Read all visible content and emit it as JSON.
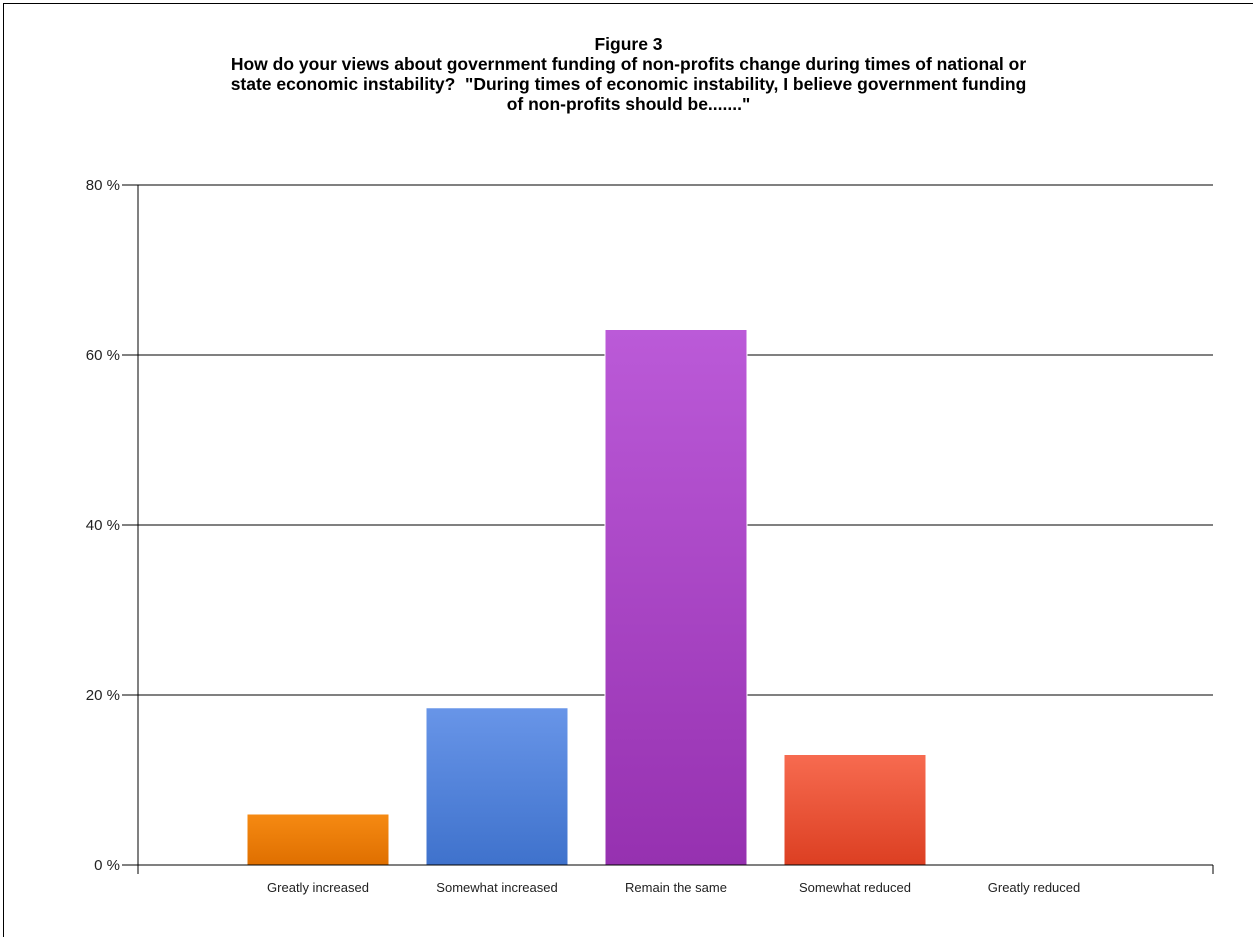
{
  "chart_data": {
    "type": "bar",
    "title": "Figure 3",
    "subtitle_lines": [
      "How do your views about government funding of non-profits change during times of national or",
      "state economic instability?  \"During times of economic instability, I believe government funding",
      "of non-profits should be.......\""
    ],
    "categories": [
      "Greatly increased",
      "Somewhat increased",
      "Remain the same",
      "Somewhat reduced",
      "Greatly reduced"
    ],
    "values": [
      6,
      18.5,
      63,
      13,
      0
    ],
    "ylim": [
      0,
      80
    ],
    "yticks": [
      0,
      20,
      40,
      60,
      80
    ],
    "ytick_labels": [
      "0 %",
      "20 %",
      "40 %",
      "60 %",
      "80 %"
    ],
    "grid": true,
    "colors": [
      [
        "#f68a12",
        "#df6f00"
      ],
      [
        "#6895e8",
        "#3f72cc"
      ],
      [
        "#bb5ad8",
        "#9631b0"
      ],
      [
        "#f76b50",
        "#dc3f22"
      ],
      [
        "#9e9e9e",
        "#7a7a7a"
      ]
    ]
  }
}
